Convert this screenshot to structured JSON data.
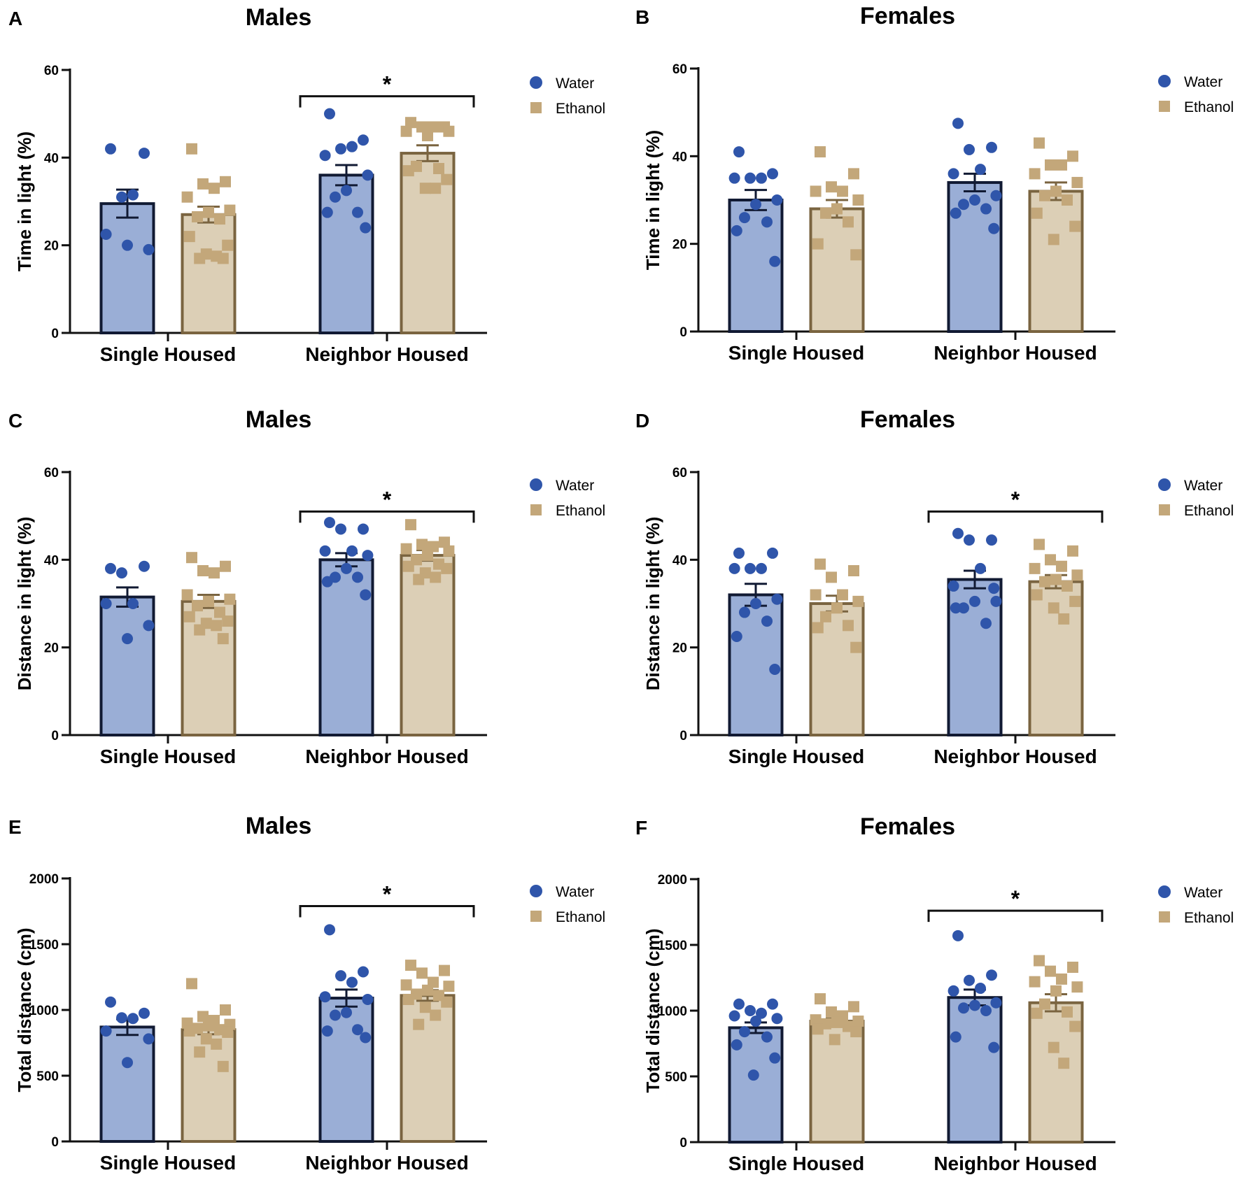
{
  "colors": {
    "water_fill": "#9aaed6",
    "water_edge": "#111a33",
    "water_point": "#2f55aa",
    "ethanol_fill": "#dccfb6",
    "ethanol_edge": "#7a6440",
    "ethanol_point": "#c3a77a",
    "axis": "#111111"
  },
  "legend": {
    "water": "Water",
    "ethanol": "Ethanol"
  },
  "categories": [
    "Single Housed",
    "Neighbor Housed"
  ],
  "chart_data": [
    {
      "panel": "A",
      "title": "Males",
      "type": "bar",
      "ylabel": "Time in light (%)",
      "ylim": [
        0,
        60
      ],
      "yticks": [
        0,
        20,
        40,
        60
      ],
      "categories": [
        "Single Housed",
        "Neighbor Housed"
      ],
      "series": [
        {
          "name": "Water",
          "means": [
            29.5,
            36
          ],
          "sem": [
            3.2,
            2.3
          ],
          "points": [
            [
              42,
              41,
              31,
              31.5,
              22.5,
              19,
              20
            ],
            [
              50,
              44,
              42,
              42.5,
              40.5,
              36,
              32.5,
              31,
              27.5,
              27.5,
              24
            ]
          ]
        },
        {
          "name": "Ethanol",
          "means": [
            27,
            41
          ],
          "sem": [
            1.8,
            1.8
          ],
          "points": [
            [
              42,
              34.5,
              34,
              33,
              31,
              28,
              27.5,
              26.5,
              26,
              22,
              20,
              18,
              17.5,
              17,
              17
            ],
            [
              48,
              47,
              47,
              47,
              46,
              46,
              45,
              38,
              37.5,
              37,
              35,
              33,
              33
            ]
          ]
        }
      ],
      "significance": {
        "between": "Neighbor Housed",
        "label": "*",
        "y": 54
      }
    },
    {
      "panel": "B",
      "title": "Females",
      "type": "bar",
      "ylabel": "Time in light (%)",
      "ylim": [
        0,
        60
      ],
      "yticks": [
        0,
        20,
        40,
        60
      ],
      "categories": [
        "Single Housed",
        "Neighbor Housed"
      ],
      "series": [
        {
          "name": "Water",
          "means": [
            30,
            34
          ],
          "sem": [
            2.3,
            2.0
          ],
          "points": [
            [
              41,
              36,
              35,
              35,
              35,
              30,
              29,
              26,
              25,
              23,
              16
            ],
            [
              47.5,
              42,
              41.5,
              37,
              36,
              31,
              30,
              29,
              28,
              27,
              23.5
            ]
          ]
        },
        {
          "name": "Ethanol",
          "means": [
            28,
            32
          ],
          "sem": [
            2.0,
            2.0
          ],
          "points": [
            [
              41,
              36,
              33,
              32,
              32,
              30,
              28,
              27,
              25,
              20,
              17.5
            ],
            [
              43,
              40,
              38,
              38,
              36,
              34,
              32,
              31,
              30,
              27,
              24,
              21
            ]
          ]
        }
      ],
      "significance": null
    },
    {
      "panel": "C",
      "title": "Males",
      "type": "bar",
      "ylabel": "Distance in light (%)",
      "ylim": [
        0,
        60
      ],
      "yticks": [
        0,
        20,
        40,
        60
      ],
      "categories": [
        "Single Housed",
        "Neighbor Housed"
      ],
      "series": [
        {
          "name": "Water",
          "means": [
            31.5,
            40
          ],
          "sem": [
            2.2,
            1.5
          ],
          "points": [
            [
              38,
              38.5,
              37,
              30,
              30,
              25,
              22
            ],
            [
              48.5,
              47,
              47,
              42,
              42,
              41,
              38,
              36,
              36,
              35,
              32
            ]
          ]
        },
        {
          "name": "Ethanol",
          "means": [
            30.5,
            41
          ],
          "sem": [
            1.5,
            1.2
          ],
          "points": [
            [
              40.5,
              38.5,
              37.5,
              37,
              32,
              31,
              30.5,
              29.5,
              28,
              27,
              26,
              25.5,
              25,
              24,
              22
            ],
            [
              48,
              44,
              43.5,
              43,
              42.5,
              42,
              41,
              40,
              39,
              38.5,
              38,
              37,
              36,
              35.5
            ]
          ]
        }
      ],
      "significance": {
        "between": "Neighbor Housed",
        "label": "*",
        "y": 51
      }
    },
    {
      "panel": "D",
      "title": "Females",
      "type": "bar",
      "ylabel": "Distance in light (%)",
      "ylim": [
        0,
        60
      ],
      "yticks": [
        0,
        20,
        40,
        60
      ],
      "categories": [
        "Single Housed",
        "Neighbor Housed"
      ],
      "series": [
        {
          "name": "Water",
          "means": [
            32,
            35.5
          ],
          "sem": [
            2.5,
            2.0
          ],
          "points": [
            [
              41.5,
              41.5,
              38,
              38,
              38,
              31,
              30,
              28,
              26,
              22.5,
              15
            ],
            [
              46,
              44.5,
              44.5,
              38,
              34,
              30.5,
              30.5,
              29,
              25.5,
              29,
              33.5
            ]
          ]
        },
        {
          "name": "Ethanol",
          "means": [
            30,
            35
          ],
          "sem": [
            1.8,
            1.5
          ],
          "points": [
            [
              39,
              37.5,
              36,
              32,
              32,
              30.5,
              29,
              27,
              25,
              24.5,
              20
            ],
            [
              43.5,
              42,
              40,
              38.5,
              38,
              36.5,
              35.5,
              35,
              34,
              32,
              30.5,
              29,
              26.5
            ]
          ]
        }
      ],
      "significance": {
        "between": "Neighbor Housed",
        "label": "*",
        "y": 51
      }
    },
    {
      "panel": "E",
      "title": "Males",
      "type": "bar",
      "ylabel": "Total distance (cm)",
      "ylim": [
        0,
        2000
      ],
      "yticks": [
        0,
        500,
        1000,
        1500,
        2000
      ],
      "categories": [
        "Single Housed",
        "Neighbor Housed"
      ],
      "series": [
        {
          "name": "Water",
          "means": [
            870,
            1090
          ],
          "sem": [
            60,
            65
          ],
          "points": [
            [
              1060,
              975,
              940,
              935,
              840,
              780,
              600
            ],
            [
              1610,
              1290,
              1260,
              1210,
              1100,
              1080,
              980,
              960,
              850,
              840,
              790
            ]
          ]
        },
        {
          "name": "Ethanol",
          "means": [
            850,
            1110
          ],
          "sem": [
            35,
            40
          ],
          "points": [
            [
              1200,
              1000,
              950,
              920,
              900,
              890,
              880,
              860,
              850,
              840,
              830,
              780,
              740,
              680,
              570
            ],
            [
              1340,
              1300,
              1280,
              1210,
              1190,
              1180,
              1150,
              1120,
              1110,
              1080,
              1060,
              1020,
              960,
              890
            ]
          ]
        }
      ],
      "significance": {
        "between": "Neighbor Housed",
        "label": "*",
        "y": 1790
      }
    },
    {
      "panel": "F",
      "title": "Females",
      "type": "bar",
      "ylabel": "Total distance (cm)",
      "ylim": [
        0,
        2000
      ],
      "yticks": [
        0,
        500,
        1000,
        1500,
        2000
      ],
      "categories": [
        "Single Housed",
        "Neighbor Housed"
      ],
      "series": [
        {
          "name": "Water",
          "means": [
            870,
            1100
          ],
          "sem": [
            40,
            60
          ],
          "points": [
            [
              1050,
              1050,
              1000,
              980,
              960,
              940,
              920,
              840,
              800,
              740,
              640,
              510
            ],
            [
              1570,
              1270,
              1230,
              1170,
              1150,
              1060,
              1040,
              1020,
              1000,
              800,
              720
            ]
          ]
        },
        {
          "name": "Ethanol",
          "means": [
            920,
            1060
          ],
          "sem": [
            20,
            65
          ],
          "points": [
            [
              1090,
              1030,
              990,
              960,
              930,
              920,
              910,
              900,
              880,
              860,
              840,
              780
            ],
            [
              1380,
              1330,
              1300,
              1240,
              1220,
              1180,
              1150,
              1050,
              990,
              980,
              880,
              720,
              600
            ]
          ]
        }
      ],
      "significance": {
        "between": "Neighbor Housed",
        "label": "*",
        "y": 1760
      }
    }
  ]
}
